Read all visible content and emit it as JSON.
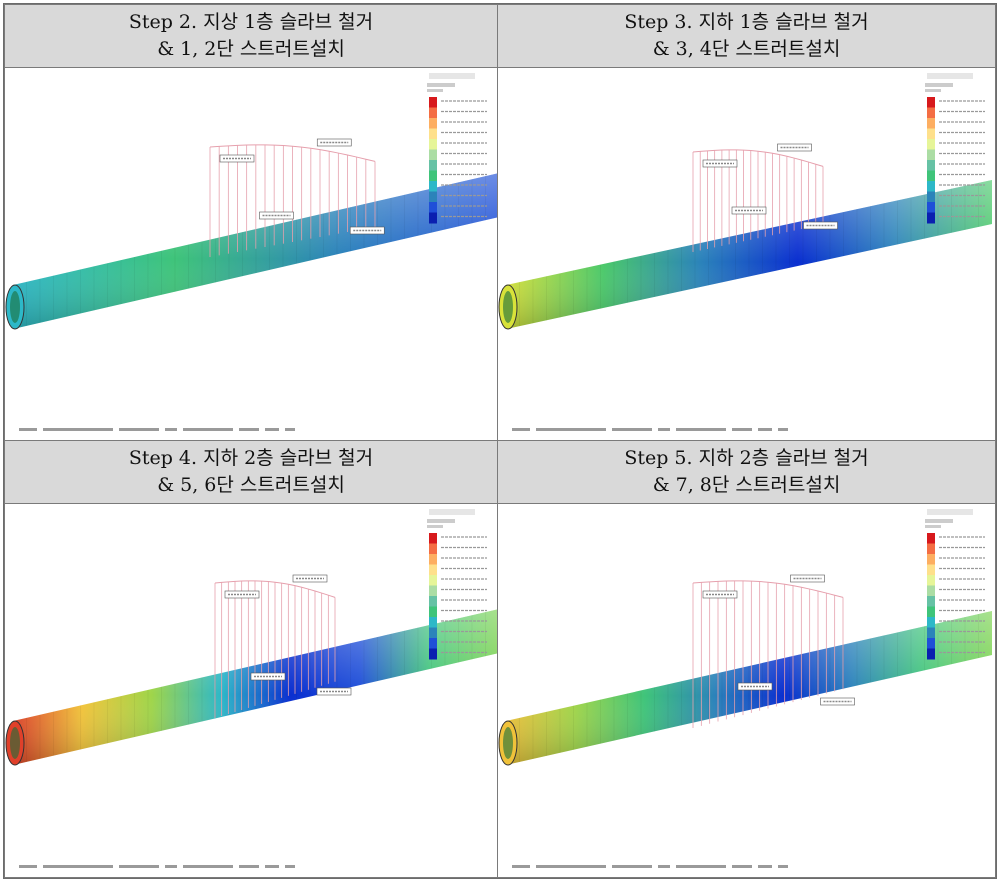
{
  "panels": [
    {
      "title_line1": "Step 2. 지상 1층 슬라브 철거",
      "title_line2": "& 1, 2단 스트러트설치",
      "stage": 2
    },
    {
      "title_line1": "Step 3. 지하 1층 슬라브 철거",
      "title_line2": "& 3, 4단 스트러트설치",
      "stage": 3
    },
    {
      "title_line1": "Step 4. 지하 2층 슬라브 철거",
      "title_line2": "& 5, 6단 스트러트설치",
      "stage": 4
    },
    {
      "title_line1": "Step 5. 지하 2층 슬라브 철거",
      "title_line2": "& 7, 8단 스트러트설치",
      "stage": 5
    }
  ],
  "colors": {
    "header_bg": "#d9d9d9",
    "border": "#7a7a7a",
    "profile": "#e6a0ad",
    "legend": [
      "#d7191c",
      "#f46d43",
      "#fdae61",
      "#fee08b",
      "#e6f598",
      "#abdda4",
      "#66c2a5",
      "#3fc47a",
      "#2db8c8",
      "#2b83ba",
      "#1f4fd8",
      "#0a1fb0"
    ]
  }
}
